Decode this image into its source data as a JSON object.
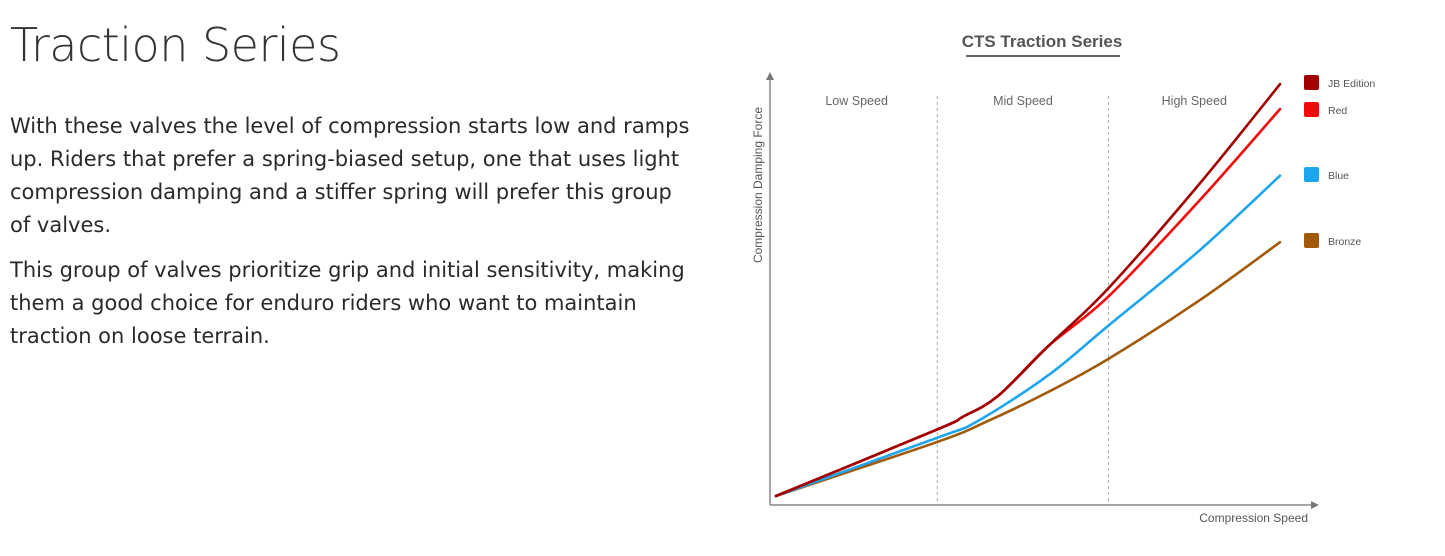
{
  "page": {
    "title": "Traction Series",
    "paragraphs": [
      "With these valves the level of compression starts low and ramps up. Riders that prefer a spring-biased setup, one that uses light compression damping and a stiffer spring will prefer this group of valves.",
      "This group of valves prioritize grip and initial sensitivity, making them a good choice for enduro riders who want to maintain traction on loose terrain."
    ]
  },
  "chart_data": {
    "type": "line",
    "title": "CTS Traction Series",
    "xlabel": "Compression Speed",
    "ylabel": "Compression Damping Force",
    "xlim": [
      0,
      100
    ],
    "ylim": [
      0,
      100
    ],
    "grid": false,
    "regions": [
      {
        "label": "Low Speed",
        "from": 0,
        "to": 32
      },
      {
        "label": "Mid Speed",
        "from": 32,
        "to": 66
      },
      {
        "label": "High Speed",
        "from": 66,
        "to": 100
      }
    ],
    "legend_placement": "right",
    "series": [
      {
        "name": "JB Edition",
        "color": "#a00000",
        "x": [
          0,
          32,
          37,
          44,
          54,
          66,
          84,
          100
        ],
        "y": [
          0,
          16,
          19,
          24,
          36,
          50,
          75,
          99
        ]
      },
      {
        "name": "Red",
        "color": "#f00a0a",
        "x": [
          0,
          32,
          37,
          44,
          54,
          66,
          84,
          100
        ],
        "y": [
          0,
          16,
          19,
          24,
          36,
          48,
          71,
          93
        ]
      },
      {
        "name": "Blue",
        "color": "#1ea5f0",
        "x": [
          0,
          32,
          40,
          54,
          66,
          84,
          100
        ],
        "y": [
          0,
          14,
          18,
          29,
          41,
          59,
          77
        ]
      },
      {
        "name": "Bronze",
        "color": "#a05a0a",
        "x": [
          0,
          32,
          42,
          54,
          66,
          84,
          100
        ],
        "y": [
          0,
          13,
          18,
          25,
          33,
          47,
          61
        ]
      }
    ]
  }
}
